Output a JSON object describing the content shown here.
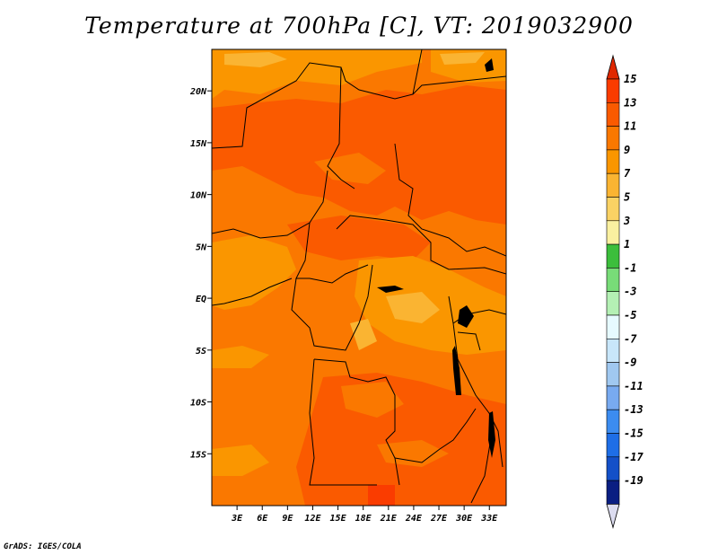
{
  "title": "Temperature at 700hPa [C], VT: 2019032900",
  "credit": "GrADS: IGES/COLA",
  "map": {
    "lon_range": [
      0,
      35
    ],
    "lat_range": [
      -20,
      24
    ],
    "lon_ticks": [
      {
        "value": 3,
        "label": "3E"
      },
      {
        "value": 6,
        "label": "6E"
      },
      {
        "value": 9,
        "label": "9E"
      },
      {
        "value": 12,
        "label": "12E"
      },
      {
        "value": 15,
        "label": "15E"
      },
      {
        "value": 18,
        "label": "18E"
      },
      {
        "value": 21,
        "label": "21E"
      },
      {
        "value": 24,
        "label": "24E"
      },
      {
        "value": 27,
        "label": "27E"
      },
      {
        "value": 30,
        "label": "30E"
      },
      {
        "value": 33,
        "label": "33E"
      }
    ],
    "lat_ticks": [
      {
        "value": 20,
        "label": "20N"
      },
      {
        "value": 15,
        "label": "15N"
      },
      {
        "value": 10,
        "label": "10N"
      },
      {
        "value": 5,
        "label": "5N"
      },
      {
        "value": 0,
        "label": "EQ"
      },
      {
        "value": -5,
        "label": "5S"
      },
      {
        "value": -10,
        "label": "10S"
      },
      {
        "value": -15,
        "label": "15S"
      }
    ]
  },
  "colorbar": {
    "levels": [
      {
        "label": "15",
        "color": "#fa3c00"
      },
      {
        "label": "13",
        "color": "#fa5a00"
      },
      {
        "label": "11",
        "color": "#fa7800"
      },
      {
        "label": "9",
        "color": "#fa9600"
      },
      {
        "label": "7",
        "color": "#fab432"
      },
      {
        "label": "5",
        "color": "#fad264"
      },
      {
        "label": "3",
        "color": "#faf0a0"
      },
      {
        "label": "1",
        "color": "#3cbe3c"
      },
      {
        "label": "-1",
        "color": "#78dc78"
      },
      {
        "label": "-3",
        "color": "#b4f0b4"
      },
      {
        "label": "-5",
        "color": "#e6faff"
      },
      {
        "label": "-7",
        "color": "#c8e6fa"
      },
      {
        "label": "-9",
        "color": "#a0c8f0"
      },
      {
        "label": "-11",
        "color": "#78aaf0"
      },
      {
        "label": "-13",
        "color": "#3c8cf0"
      },
      {
        "label": "-15",
        "color": "#1e6ee6"
      },
      {
        "label": "-17",
        "color": "#1450c8"
      },
      {
        "label": "-19",
        "color": "#0a1e82"
      }
    ],
    "top_color": "#e02800",
    "bottom_color": "#dcdcf0",
    "bottom_band_color": "#141478"
  }
}
